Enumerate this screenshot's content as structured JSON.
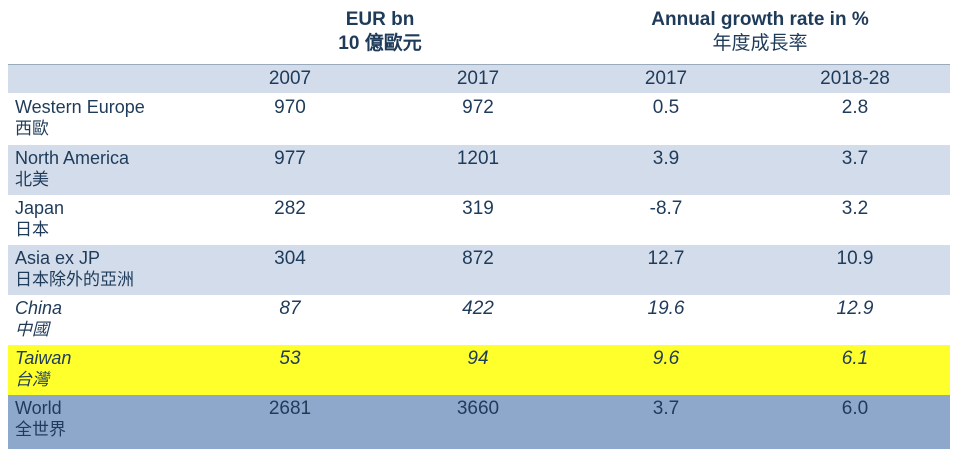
{
  "header": {
    "group_eur": {
      "line1": "EUR bn",
      "line2": "10 億歐元"
    },
    "group_growth": {
      "line1": "Annual growth rate in %",
      "line2": "年度成長率"
    },
    "columns": [
      "2007",
      "2017",
      "2017",
      "2018-28"
    ]
  },
  "rows": [
    {
      "name": "Western Europe",
      "cjk": "西歐",
      "values": [
        "970",
        "972",
        "0.5",
        "2.8"
      ]
    },
    {
      "name": "North America",
      "cjk": "北美",
      "values": [
        "977",
        "1201",
        "3.9",
        "3.7"
      ]
    },
    {
      "name": "Japan",
      "cjk": "日本",
      "values": [
        "282",
        "319",
        "-8.7",
        "3.2"
      ]
    },
    {
      "name": "Asia ex JP",
      "cjk": "日本除外的亞洲",
      "values": [
        "304",
        "872",
        "12.7",
        "10.9"
      ]
    },
    {
      "name": "China",
      "cjk": "中國",
      "values": [
        "87",
        "422",
        "19.6",
        "12.9"
      ]
    },
    {
      "name": "Taiwan",
      "cjk": "台灣",
      "values": [
        "53",
        "94",
        "9.6",
        "6.1"
      ]
    },
    {
      "name": "World",
      "cjk": "全世界",
      "values": [
        "2681",
        "3660",
        "3.7",
        "6.0"
      ]
    }
  ],
  "colors": {
    "text": "#1f3b5a",
    "header_band": "#d3dcea",
    "alt_row": "#d3dcea",
    "highlight_row": "#ffff2b",
    "total_row": "#8ea8cc"
  }
}
